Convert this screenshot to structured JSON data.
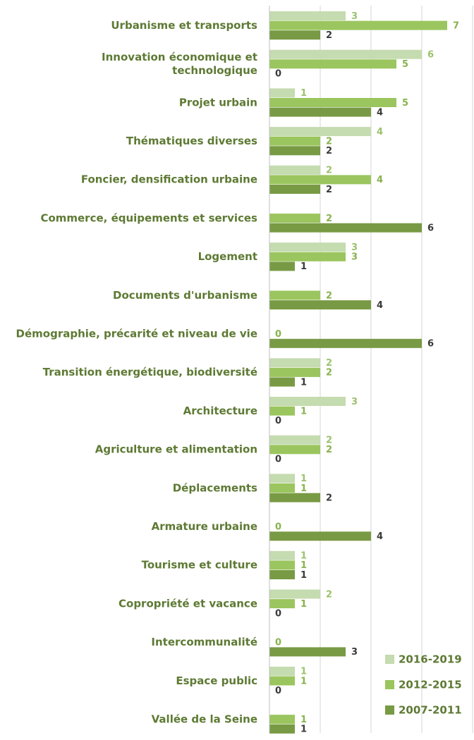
{
  "chart_data": {
    "type": "bar",
    "orientation": "horizontal",
    "title": "",
    "xlabel": "",
    "ylabel": "",
    "xlim": [
      0,
      8
    ],
    "grid": true,
    "legend_position": "bottom-right",
    "categories": [
      [
        "Urbanisme et transports"
      ],
      [
        "Innovation économique et",
        "technologique"
      ],
      [
        "Projet urbain"
      ],
      [
        "Thématiques diverses"
      ],
      [
        "Foncier, densification urbaine"
      ],
      [
        "Commerce, équipements et services"
      ],
      [
        "Logement"
      ],
      [
        "Documents d'urbanisme"
      ],
      [
        "Démographie, précarité et niveau de vie"
      ],
      [
        "Transition énergétique, biodiversité"
      ],
      [
        "Architecture"
      ],
      [
        "Agriculture et alimentation"
      ],
      [
        "Déplacements"
      ],
      [
        "Armature urbaine"
      ],
      [
        "Tourisme et culture"
      ],
      [
        "Copropriété et vacance"
      ],
      [
        "Intercommunalité"
      ],
      [
        "Espace public"
      ],
      [
        "Vallée de la Seine"
      ]
    ],
    "series": [
      {
        "name": "2016-2019",
        "color": "#c5dbb0",
        "label_color": "#9bc26c",
        "values": [
          3,
          6,
          1,
          4,
          2,
          null,
          3,
          null,
          null,
          2,
          3,
          2,
          1,
          null,
          1,
          2,
          null,
          1,
          null
        ]
      },
      {
        "name": "2012-2015",
        "color": "#9bc55e",
        "label_color": "#88b24c",
        "values": [
          7,
          5,
          5,
          2,
          4,
          2,
          3,
          2,
          0,
          2,
          1,
          2,
          1,
          0,
          1,
          1,
          0,
          1,
          1
        ]
      },
      {
        "name": "2007-2011",
        "color": "#789a44",
        "label_color": "#3a3a3a",
        "values": [
          2,
          0,
          4,
          2,
          2,
          6,
          1,
          4,
          6,
          1,
          0,
          0,
          2,
          4,
          1,
          0,
          3,
          0,
          1
        ]
      }
    ]
  }
}
